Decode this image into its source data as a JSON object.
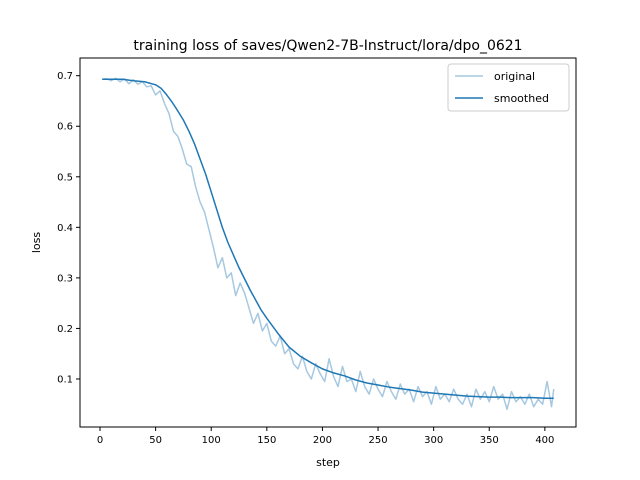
{
  "chart_data": {
    "type": "line",
    "title": "training loss of saves/Qwen2-7B-Instruct/lora/dpo_0621",
    "xlabel": "step",
    "ylabel": "loss",
    "xlim": [
      -18,
      428
    ],
    "ylim": [
      0.005,
      0.735
    ],
    "xticks": [
      0,
      50,
      100,
      150,
      200,
      250,
      300,
      350,
      400
    ],
    "yticks": [
      0.1,
      0.2,
      0.3,
      0.4,
      0.5,
      0.6,
      0.7
    ],
    "ytick_labels": [
      "0.1",
      "0.2",
      "0.3",
      "0.4",
      "0.5",
      "0.6",
      "0.7"
    ],
    "grid": false,
    "legend_position": "top-right",
    "series": [
      {
        "name": "original",
        "color": "#a6c8e0",
        "x": [
          2,
          6,
          10,
          14,
          18,
          22,
          26,
          30,
          34,
          38,
          42,
          46,
          50,
          54,
          58,
          62,
          66,
          70,
          74,
          78,
          82,
          86,
          90,
          94,
          98,
          102,
          106,
          110,
          114,
          118,
          122,
          126,
          130,
          134,
          138,
          142,
          146,
          150,
          154,
          158,
          162,
          166,
          170,
          174,
          178,
          182,
          186,
          190,
          194,
          198,
          202,
          206,
          210,
          214,
          218,
          222,
          226,
          230,
          234,
          238,
          242,
          246,
          250,
          254,
          258,
          262,
          266,
          270,
          274,
          278,
          282,
          286,
          290,
          294,
          298,
          302,
          306,
          310,
          314,
          318,
          322,
          326,
          330,
          334,
          338,
          342,
          346,
          350,
          354,
          358,
          362,
          366,
          370,
          374,
          378,
          382,
          386,
          390,
          394,
          398,
          402,
          406,
          408
        ],
        "y": [
          0.693,
          0.694,
          0.69,
          0.695,
          0.688,
          0.694,
          0.684,
          0.692,
          0.683,
          0.688,
          0.678,
          0.68,
          0.662,
          0.67,
          0.645,
          0.625,
          0.59,
          0.58,
          0.555,
          0.525,
          0.52,
          0.48,
          0.45,
          0.43,
          0.395,
          0.36,
          0.32,
          0.34,
          0.3,
          0.31,
          0.265,
          0.29,
          0.27,
          0.24,
          0.21,
          0.23,
          0.195,
          0.21,
          0.175,
          0.165,
          0.185,
          0.15,
          0.16,
          0.13,
          0.12,
          0.145,
          0.115,
          0.1,
          0.13,
          0.11,
          0.095,
          0.14,
          0.105,
          0.085,
          0.125,
          0.095,
          0.1,
          0.075,
          0.115,
          0.085,
          0.07,
          0.1,
          0.08,
          0.065,
          0.095,
          0.075,
          0.06,
          0.09,
          0.07,
          0.08,
          0.055,
          0.085,
          0.065,
          0.075,
          0.05,
          0.085,
          0.06,
          0.07,
          0.055,
          0.08,
          0.06,
          0.05,
          0.07,
          0.045,
          0.08,
          0.06,
          0.075,
          0.055,
          0.085,
          0.06,
          0.07,
          0.04,
          0.075,
          0.055,
          0.065,
          0.05,
          0.07,
          0.045,
          0.06,
          0.05,
          0.095,
          0.045,
          0.08
        ]
      },
      {
        "name": "smoothed",
        "color": "#1f77b4",
        "x": [
          2,
          10,
          20,
          30,
          40,
          50,
          55,
          60,
          65,
          70,
          75,
          80,
          85,
          90,
          95,
          100,
          105,
          110,
          115,
          120,
          125,
          130,
          135,
          140,
          145,
          150,
          160,
          170,
          180,
          190,
          200,
          210,
          220,
          230,
          240,
          250,
          260,
          270,
          280,
          290,
          300,
          310,
          320,
          330,
          340,
          350,
          360,
          370,
          380,
          390,
          400,
          408
        ],
        "y": [
          0.693,
          0.693,
          0.693,
          0.69,
          0.688,
          0.682,
          0.675,
          0.662,
          0.647,
          0.63,
          0.612,
          0.59,
          0.565,
          0.535,
          0.505,
          0.47,
          0.435,
          0.4,
          0.37,
          0.345,
          0.32,
          0.298,
          0.276,
          0.256,
          0.236,
          0.22,
          0.19,
          0.163,
          0.145,
          0.132,
          0.12,
          0.112,
          0.106,
          0.098,
          0.092,
          0.088,
          0.084,
          0.081,
          0.078,
          0.074,
          0.072,
          0.07,
          0.068,
          0.066,
          0.065,
          0.064,
          0.064,
          0.063,
          0.063,
          0.063,
          0.062,
          0.062
        ]
      }
    ]
  }
}
